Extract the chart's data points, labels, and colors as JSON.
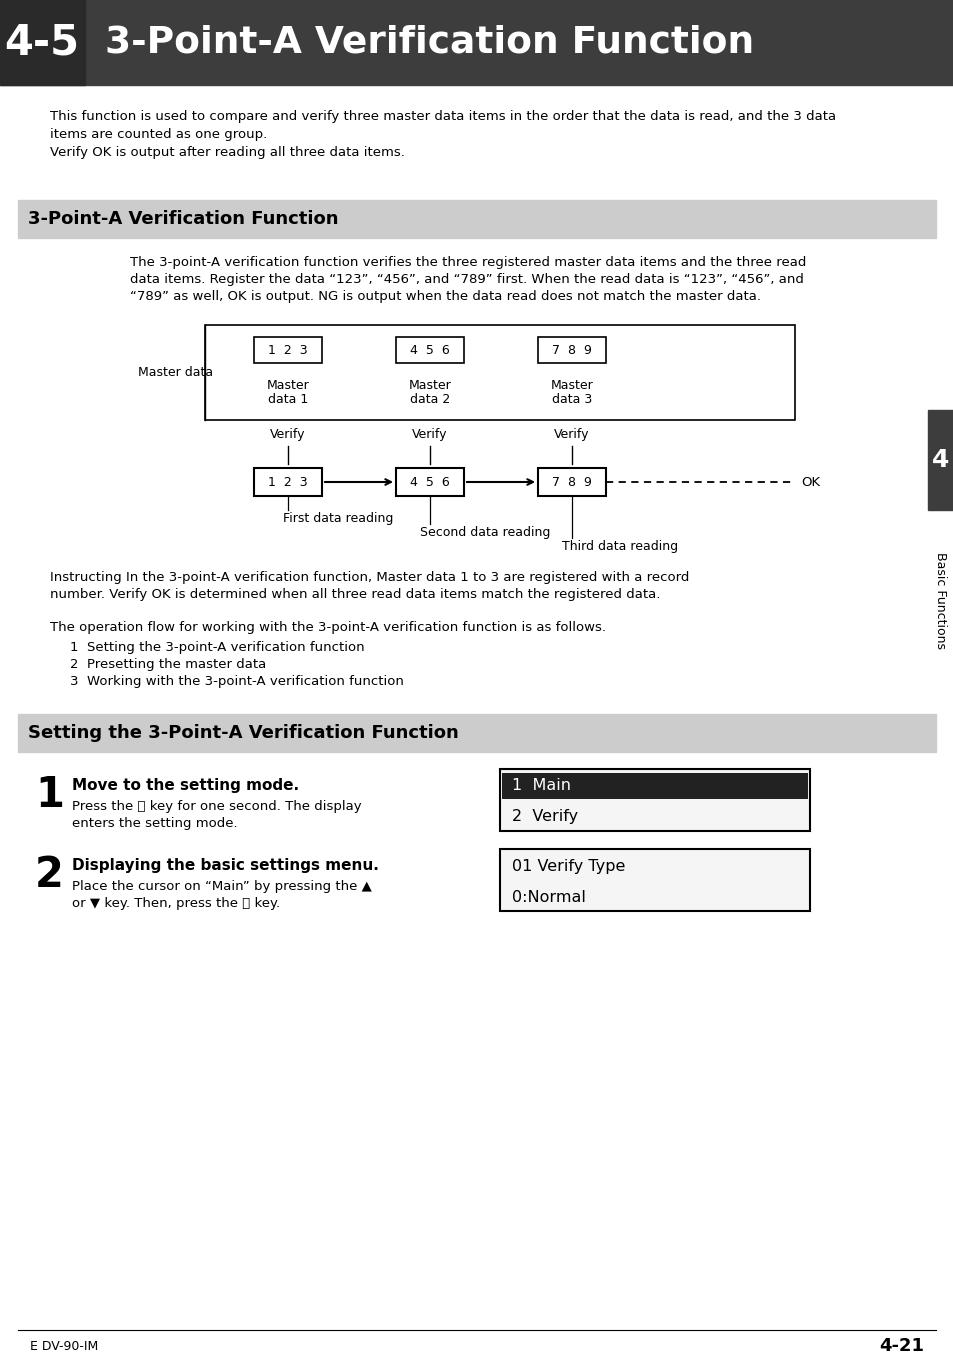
{
  "page_bg": "#ffffff",
  "header_bg": "#3d3d3d",
  "header_text": "4-5",
  "header_title": "3-Point-A Verification Function",
  "intro_text1": "This function is used to compare and verify three master data items in the order that the data is read, and the 3 data",
  "intro_text2": "items are counted as one group.",
  "intro_text3": "Verify OK is output after reading all three data items.",
  "section1_bg": "#cccccc",
  "section1_title": "3-Point-A Verification Function",
  "section1_body_lines": [
    "The 3-point-A verification function verifies the three registered master data items and the three read",
    "data items. Register the data “123”, “456”, and “789” first. When the read data is “123”, “456”, and",
    "“789” as well, OK is output. NG is output when the data read does not match the master data."
  ],
  "master_boxes": [
    "1  2  3",
    "4  5  6",
    "7  8  9"
  ],
  "master_labels": [
    [
      "Master",
      "data 1"
    ],
    [
      "Master",
      "data 2"
    ],
    [
      "Master",
      "data 3"
    ]
  ],
  "read_boxes": [
    "1  2  3",
    "4  5  6",
    "7  8  9"
  ],
  "read_labels": [
    "First data reading",
    "Second data reading",
    "Third data reading"
  ],
  "instructing_lines": [
    "Instructing In the 3-point-A verification function, Master data 1 to 3 are registered with a record",
    "number. Verify OK is determined when all three read data items match the registered data."
  ],
  "operation_text": "The operation flow for working with the 3-point-A verification function is as follows.",
  "steps": [
    "1  Setting the 3-point-A verification function",
    "2  Presetting the master data",
    "3  Working with the 3-point-A verification function"
  ],
  "section2_bg": "#cccccc",
  "section2_title": "Setting the 3-Point-A Verification Function",
  "step1_num": "1",
  "step1_title": "Move to the setting mode.",
  "step1_body1": "Press the Ⓢ key for one second. The display",
  "step1_body2": "enters the setting mode.",
  "disp1_line1": "1  Main",
  "disp1_line2": "2  Verify",
  "step2_num": "2",
  "step2_title": "Displaying the basic settings menu.",
  "step2_body1": "Place the cursor on “Main” by pressing the ▲",
  "step2_body2": "or ▼ key. Then, press the Ⓢ key.",
  "disp2_line1": "01 Verify Type",
  "disp2_line2": "0:Normal",
  "sidebar_num": "4",
  "sidebar_text": "Basic Functions",
  "footer_left": "E DV-90-IM",
  "footer_right": "4-21"
}
